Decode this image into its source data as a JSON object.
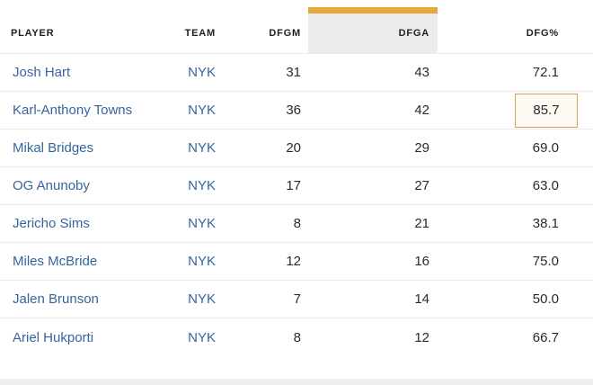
{
  "colors": {
    "accent-gold": "#E9A63B",
    "header-cell-bg": "#ECECEC",
    "link-blue": "#35659F",
    "text-dark": "#1F1F1F",
    "num-dark": "#2B2B2B",
    "row-line": "#ECEAEC",
    "highlight-border": "#D7A35F",
    "highlight-bg": "#FDFAF3"
  },
  "table": {
    "columns": {
      "player": "PLAYER",
      "team": "TEAM",
      "dfgm": "DFGM",
      "dfga": "DFGA",
      "dfgpct": "DFG%"
    },
    "highlighted_column": "DFGA",
    "highlighted_value": "85.7",
    "rows": [
      {
        "player": "Josh Hart",
        "team": "NYK",
        "dfgm": "31",
        "dfga": "43",
        "dfgpct": "72.1"
      },
      {
        "player": "Karl-Anthony Towns",
        "team": "NYK",
        "dfgm": "36",
        "dfga": "42",
        "dfgpct": "85.7",
        "dfgpct_highlighted": true
      },
      {
        "player": "Mikal Bridges",
        "team": "NYK",
        "dfgm": "20",
        "dfga": "29",
        "dfgpct": "69.0"
      },
      {
        "player": "OG Anunoby",
        "team": "NYK",
        "dfgm": "17",
        "dfga": "27",
        "dfgpct": "63.0"
      },
      {
        "player": "Jericho Sims",
        "team": "NYK",
        "dfgm": "8",
        "dfga": "21",
        "dfgpct": "38.1"
      },
      {
        "player": "Miles McBride",
        "team": "NYK",
        "dfgm": "12",
        "dfga": "16",
        "dfgpct": "75.0"
      },
      {
        "player": "Jalen Brunson",
        "team": "NYK",
        "dfgm": "7",
        "dfga": "14",
        "dfgpct": "50.0"
      },
      {
        "player": "Ariel Hukporti",
        "team": "NYK",
        "dfgm": "8",
        "dfga": "12",
        "dfgpct": "66.7"
      }
    ]
  }
}
